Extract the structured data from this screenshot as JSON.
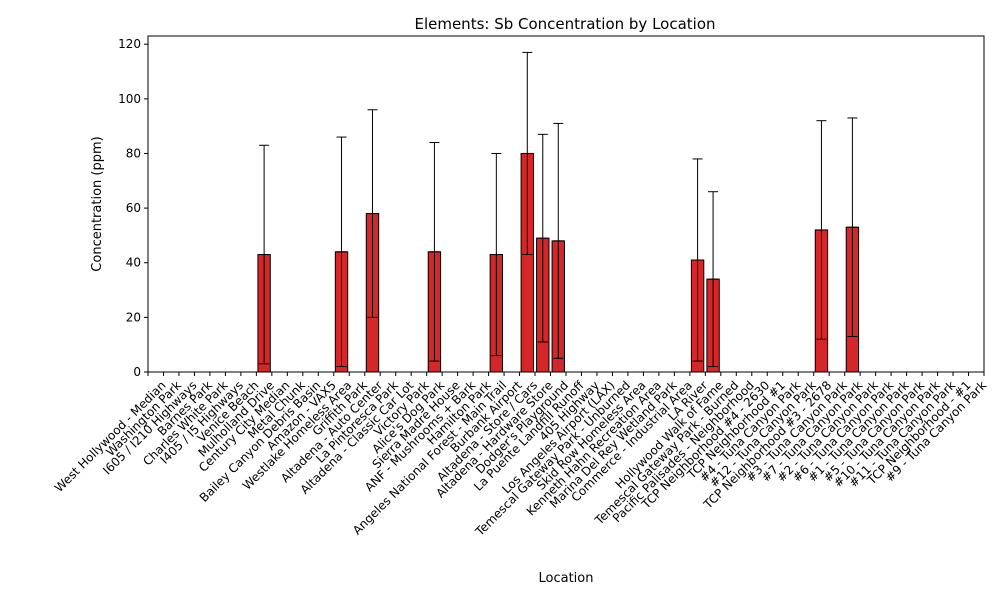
{
  "chart_data": {
    "type": "bar",
    "title": "Elements: Sb Concentration by Location",
    "xlabel": "Location",
    "ylabel": "Concentration (ppm)",
    "ylim": [
      0,
      123
    ],
    "yticks": [
      0,
      20,
      40,
      60,
      80,
      100,
      120
    ],
    "grid": false,
    "bar_color": "#d62728",
    "edge_color": "#000000",
    "categories": [
      "West Hollywood - Median",
      "Washington Park",
      "I605 / I210 Highways",
      "Barnes Park",
      "Charles White Park",
      "I405 / I5 Highways",
      "Venice Beach",
      "Mulholland Drive",
      "Century City Median",
      "Metal Chunk",
      "Bailey Canyon Debris Basin",
      "Amazon - VAX5",
      "Westlake Homeless Area",
      "Griffith Park",
      "Altadena - Auto Center",
      "La Pintoresca Park",
      "Altadena - Classic Car Lot",
      "Victory Park",
      "Alice's Dog Park",
      "Sierra Madre House",
      "ANF - Mushrooms + Bark",
      "Hamilton Park",
      "Angeles National Forest - Main Trail",
      "Burbank Airport",
      "Altadena - Store / Cars",
      "Altadena - Hardware Store",
      "Dodger's Playground",
      "La Puente Landfill Runoff",
      "405 Highway",
      "Los Angeles Airport (LAX)",
      "Temescal Gateway Park - Unburned",
      "Skid Row Homeless Area",
      "Kenneth Hahn Recreation Area",
      "Marina Del Rey Wetland Park",
      "Commerce - Industrial Area",
      "LA River",
      "Hollywood Walk of Fame",
      "Temescal Gateway Park - Burned",
      "Pacific Palisades - Neighborhood",
      "TCP Neighborhood #4 - 2630",
      "TCP Neighborhood #1",
      "#4 - Tuna Canyon Park",
      "#12 - Tuna Canyon Park",
      "TCP Neighborhood #3 - 2678",
      "#3 - Tuna Canyon Park",
      "#7 - Tuna Canyon Park",
      "#2 - Tuna Canyon Park",
      "#6 - Tuna Canyon Park",
      "#1 - Tuna Canyon Park",
      "#5 - Tuna Canyon Park",
      "#10 - Tuna Canyon Park",
      "#11 - Tuna Canyon Park",
      "TCP Neighborhood - #1",
      "#9 - Tuna Canyon Park"
    ],
    "values": [
      0,
      0,
      0,
      0,
      0,
      0,
      0,
      43,
      0,
      0,
      0,
      0,
      44,
      0,
      58,
      0,
      0,
      0,
      44,
      0,
      0,
      0,
      43,
      0,
      80,
      49,
      48,
      0,
      0,
      0,
      0,
      0,
      0,
      0,
      0,
      41,
      34,
      0,
      0,
      0,
      0,
      0,
      0,
      52,
      0,
      53,
      0,
      0,
      0,
      0,
      0,
      0,
      0,
      0
    ],
    "err_low": [
      0,
      0,
      0,
      0,
      0,
      0,
      0,
      3,
      0,
      0,
      0,
      0,
      2,
      0,
      20,
      0,
      0,
      0,
      4,
      0,
      0,
      0,
      6,
      0,
      43,
      11,
      5,
      0,
      0,
      0,
      0,
      0,
      0,
      0,
      0,
      4,
      2,
      0,
      0,
      0,
      0,
      0,
      0,
      12,
      0,
      13,
      0,
      0,
      0,
      0,
      0,
      0,
      0,
      0
    ],
    "err_high": [
      0,
      0,
      0,
      0,
      0,
      0,
      0,
      83,
      0,
      0,
      0,
      0,
      86,
      0,
      96,
      0,
      0,
      0,
      84,
      0,
      0,
      0,
      80,
      0,
      117,
      87,
      91,
      0,
      0,
      0,
      0,
      0,
      0,
      0,
      0,
      78,
      66,
      0,
      0,
      0,
      0,
      0,
      0,
      92,
      0,
      93,
      0,
      0,
      0,
      0,
      0,
      0,
      0,
      0
    ]
  }
}
